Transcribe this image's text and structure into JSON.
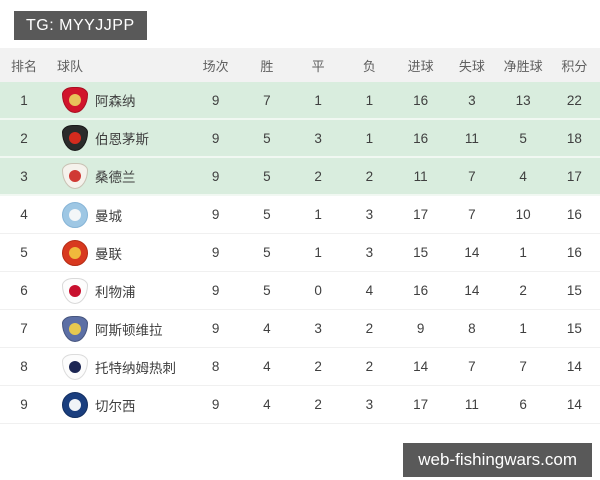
{
  "page": {
    "badge_text": "TG: MYYJJPP",
    "watermark_text": "web-fishingwars.com"
  },
  "colors": {
    "badge_bg": "#595959",
    "watermark_bg": "#595959",
    "header_bg": "#f2f2f2",
    "highlight_row_bg": "#d9edde",
    "row_bg": "#ffffff",
    "header_text": "#606060",
    "cell_text": "#3f3f3f"
  },
  "table": {
    "columns": [
      "排名",
      "球队",
      "场次",
      "胜",
      "平",
      "负",
      "进球",
      "失球",
      "净胜球",
      "积分"
    ],
    "rows": [
      {
        "rank": 1,
        "team": "阿森纳",
        "icon": "arsenal-crest",
        "crest": {
          "shape": "shield",
          "bg": "#d1142b",
          "inner": "#e8c15a",
          "border": "#a90f22"
        },
        "played": 9,
        "win": 7,
        "draw": 1,
        "loss": 1,
        "gf": 16,
        "ga": 3,
        "gd": 13,
        "pts": 22,
        "highlight": true
      },
      {
        "rank": 2,
        "team": "伯恩茅斯",
        "icon": "bournemouth-crest",
        "crest": {
          "shape": "shield",
          "bg": "#2b2b2b",
          "inner": "#d52b1e",
          "border": "#1a1a1a"
        },
        "played": 9,
        "win": 5,
        "draw": 3,
        "loss": 1,
        "gf": 16,
        "ga": 11,
        "gd": 5,
        "pts": 18,
        "highlight": true
      },
      {
        "rank": 3,
        "team": "桑德兰",
        "icon": "sunderland-crest",
        "crest": {
          "shape": "shield",
          "bg": "#f5f2ec",
          "inner": "#d03a34",
          "border": "#c9c2b4"
        },
        "played": 9,
        "win": 5,
        "draw": 2,
        "loss": 2,
        "gf": 11,
        "ga": 7,
        "gd": 4,
        "pts": 17,
        "highlight": true
      },
      {
        "rank": 4,
        "team": "曼城",
        "icon": "man-city-crest",
        "crest": {
          "shape": "circle",
          "bg": "#9ec7e4",
          "inner": "#f3f6f8",
          "border": "#86b4d6"
        },
        "played": 9,
        "win": 5,
        "draw": 1,
        "loss": 3,
        "gf": 17,
        "ga": 7,
        "gd": 10,
        "pts": 16,
        "highlight": false
      },
      {
        "rank": 5,
        "team": "曼联",
        "icon": "man-utd-crest",
        "crest": {
          "shape": "circle",
          "bg": "#d8391f",
          "inner": "#f0b93c",
          "border": "#b52c16"
        },
        "played": 9,
        "win": 5,
        "draw": 1,
        "loss": 3,
        "gf": 15,
        "ga": 14,
        "gd": 1,
        "pts": 16,
        "highlight": false
      },
      {
        "rank": 6,
        "team": "利物浦",
        "icon": "liverpool-crest",
        "crest": {
          "shape": "shield",
          "bg": "#fdfdfd",
          "inner": "#c8102e",
          "border": "#d9d9d9"
        },
        "played": 9,
        "win": 5,
        "draw": 0,
        "loss": 4,
        "gf": 16,
        "ga": 14,
        "gd": 2,
        "pts": 15,
        "highlight": false
      },
      {
        "rank": 7,
        "team": "阿斯顿维拉",
        "icon": "aston-villa-crest",
        "crest": {
          "shape": "shield",
          "bg": "#5c6fa5",
          "inner": "#e7c94f",
          "border": "#47567f"
        },
        "played": 9,
        "win": 4,
        "draw": 3,
        "loss": 2,
        "gf": 9,
        "ga": 8,
        "gd": 1,
        "pts": 15,
        "highlight": false
      },
      {
        "rank": 8,
        "team": "托特纳姆热刺",
        "icon": "tottenham-crest",
        "crest": {
          "shape": "shield",
          "bg": "#fcfcfc",
          "inner": "#1c2653",
          "border": "#dcdcdc"
        },
        "played": 8,
        "win": 4,
        "draw": 2,
        "loss": 2,
        "gf": 14,
        "ga": 7,
        "gd": 7,
        "pts": 14,
        "highlight": false
      },
      {
        "rank": 9,
        "team": "切尔西",
        "icon": "chelsea-crest",
        "crest": {
          "shape": "circle",
          "bg": "#1a3e7e",
          "inner": "#f0f3f7",
          "border": "#122e61"
        },
        "played": 9,
        "win": 4,
        "draw": 2,
        "loss": 3,
        "gf": 17,
        "ga": 11,
        "gd": 6,
        "pts": 14,
        "highlight": false
      }
    ]
  }
}
